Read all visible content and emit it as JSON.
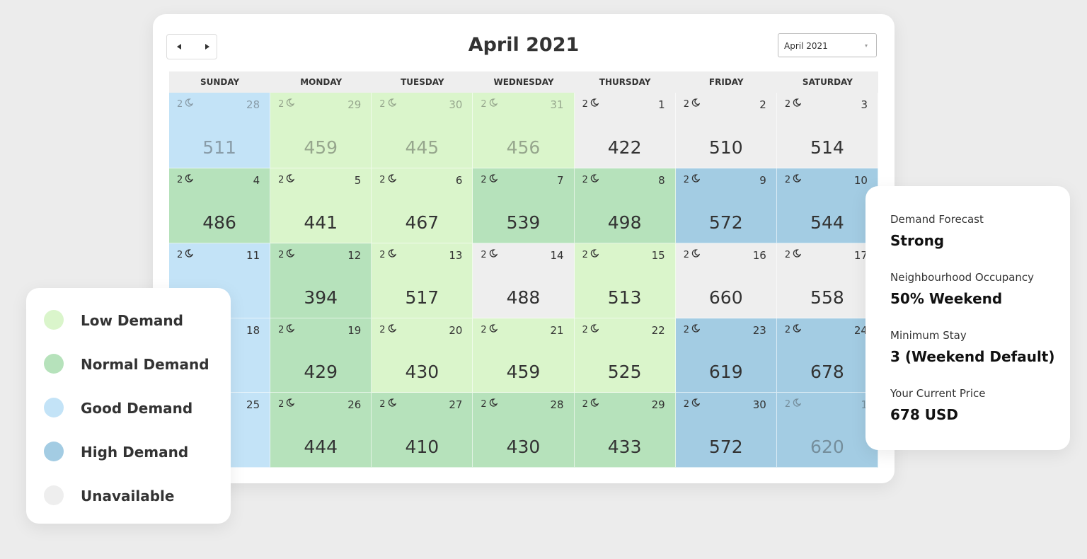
{
  "header": {
    "title": "April 2021",
    "dropdown": "April 2021"
  },
  "weekdays": [
    "SUNDAY",
    "MONDAY",
    "TUESDAY",
    "WEDNESDAY",
    "THURSDAY",
    "FRIDAY",
    "SATURDAY"
  ],
  "calendar": {
    "rows": [
      [
        {
          "nights": 2,
          "day": 28,
          "price": 511,
          "color": "#c3e3f7",
          "muted": true
        },
        {
          "nights": 2,
          "day": 29,
          "price": 459,
          "color": "#daf5cb",
          "muted": true
        },
        {
          "nights": 2,
          "day": 30,
          "price": 445,
          "color": "#daf5cb",
          "muted": true
        },
        {
          "nights": 2,
          "day": 31,
          "price": 456,
          "color": "#daf5cb",
          "muted": true
        },
        {
          "nights": 2,
          "day": 1,
          "price": 422,
          "color": "#eeeeee"
        },
        {
          "nights": 2,
          "day": 2,
          "price": 510,
          "color": "#eeeeee"
        },
        {
          "nights": 2,
          "day": 3,
          "price": 514,
          "color": "#eeeeee"
        }
      ],
      [
        {
          "nights": 2,
          "day": 4,
          "price": 486,
          "color": "#b6e2bb"
        },
        {
          "nights": 2,
          "day": 5,
          "price": 441,
          "color": "#daf5cb"
        },
        {
          "nights": 2,
          "day": 6,
          "price": 467,
          "color": "#daf5cb"
        },
        {
          "nights": 2,
          "day": 7,
          "price": 539,
          "color": "#b6e2bb"
        },
        {
          "nights": 2,
          "day": 8,
          "price": 498,
          "color": "#b6e2bb"
        },
        {
          "nights": 2,
          "day": 9,
          "price": 572,
          "color": "#a3cce3"
        },
        {
          "nights": 2,
          "day": 10,
          "price": 544,
          "color": "#a3cce3"
        }
      ],
      [
        {
          "nights": 2,
          "day": 11,
          "color": "#c3e3f7"
        },
        {
          "nights": 2,
          "day": 12,
          "price": 394,
          "color": "#b6e2bb"
        },
        {
          "nights": 2,
          "day": 13,
          "price": 517,
          "color": "#daf5cb"
        },
        {
          "nights": 2,
          "day": 14,
          "price": 488,
          "color": "#eeeeee"
        },
        {
          "nights": 2,
          "day": 15,
          "price": 513,
          "color": "#daf5cb"
        },
        {
          "nights": 2,
          "day": 16,
          "price": 660,
          "color": "#eeeeee"
        },
        {
          "nights": 2,
          "day": 17,
          "price": 558,
          "color": "#eeeeee"
        }
      ],
      [
        {
          "day": 18,
          "color": "#c3e3f7"
        },
        {
          "nights": 2,
          "day": 19,
          "price": 429,
          "color": "#b6e2bb"
        },
        {
          "nights": 2,
          "day": 20,
          "price": 430,
          "color": "#daf5cb"
        },
        {
          "nights": 2,
          "day": 21,
          "price": 459,
          "color": "#daf5cb"
        },
        {
          "nights": 2,
          "day": 22,
          "price": 525,
          "color": "#daf5cb"
        },
        {
          "nights": 2,
          "day": 23,
          "price": 619,
          "color": "#a3cce3"
        },
        {
          "nights": 2,
          "day": 24,
          "price": 678,
          "color": "#a3cce3"
        }
      ],
      [
        {
          "day": 25,
          "color": "#c3e3f7"
        },
        {
          "nights": 2,
          "day": 26,
          "price": 444,
          "color": "#b6e2bb"
        },
        {
          "nights": 2,
          "day": 27,
          "price": 410,
          "color": "#b6e2bb"
        },
        {
          "nights": 2,
          "day": 28,
          "price": 430,
          "color": "#b6e2bb"
        },
        {
          "nights": 2,
          "day": 29,
          "price": 433,
          "color": "#b6e2bb"
        },
        {
          "nights": 2,
          "day": 30,
          "price": 572,
          "color": "#a3cce3"
        },
        {
          "nights": 2,
          "day": 1,
          "price": 620,
          "color": "#a3cce3",
          "muted": true
        }
      ]
    ]
  },
  "legend": {
    "items": [
      {
        "label": "Low Demand",
        "color": "#daf5cb"
      },
      {
        "label": "Normal Demand",
        "color": "#b6e2bb"
      },
      {
        "label": "Good Demand",
        "color": "#c3e3f7"
      },
      {
        "label": "High Demand",
        "color": "#a3cce3"
      },
      {
        "label": "Unavailable",
        "color": "#eeeeee"
      }
    ]
  },
  "info": {
    "items": [
      {
        "label": "Demand Forecast",
        "value": "Strong"
      },
      {
        "label": "Neighbourhood Occupancy",
        "value": "50% Weekend"
      },
      {
        "label": "Minimum Stay",
        "value": "3 (Weekend Default)"
      },
      {
        "label": "Your Current Price",
        "value": "678 USD"
      }
    ]
  }
}
